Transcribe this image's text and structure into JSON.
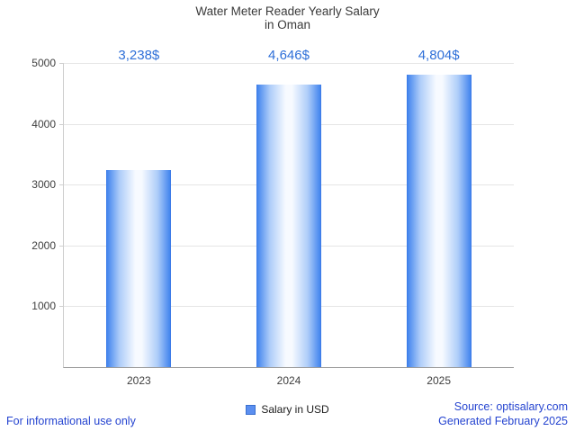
{
  "title": {
    "line1": "Water Meter Reader Yearly Salary",
    "line2": "in Oman"
  },
  "chart_data": {
    "type": "bar",
    "title": "Water Meter Reader Yearly Salary in Oman",
    "categories": [
      "2023",
      "2024",
      "2025"
    ],
    "series": [
      {
        "name": "Salary in USD",
        "values": [
          3238,
          4646,
          4804
        ]
      }
    ],
    "values": [
      3238,
      4646,
      4804
    ],
    "value_labels": [
      "3,238$",
      "4,646$",
      "4,804$"
    ],
    "xlabel": "",
    "ylabel": "",
    "ylim": [
      0,
      5000
    ],
    "yticks": [
      1000,
      2000,
      3000,
      4000,
      5000
    ],
    "grid": true,
    "legend": {
      "label": "Salary in USD",
      "position": "bottom-center"
    }
  },
  "legend": {
    "label": "Salary in USD"
  },
  "footer": {
    "left": "For informational use only",
    "source": "Source: optisalary.com",
    "generated": "Generated February 2025"
  },
  "colors": {
    "bar_edge": "#4385ee",
    "bar_mid": "#aecdf9",
    "bar_center": "#f7faff",
    "bar_border": "#3c7be8",
    "value_label": "#2e6fd8",
    "link_blue": "#2544d0",
    "title_text": "#3a3a3a",
    "axis_text": "#404040",
    "gridline": "#e6e6e6",
    "axis_line": "#cfcfcf",
    "axis_bottom": "#9a9a9a",
    "legend_swatch": "#5b8ff0",
    "legend_swatch_border": "#3a70cf"
  }
}
